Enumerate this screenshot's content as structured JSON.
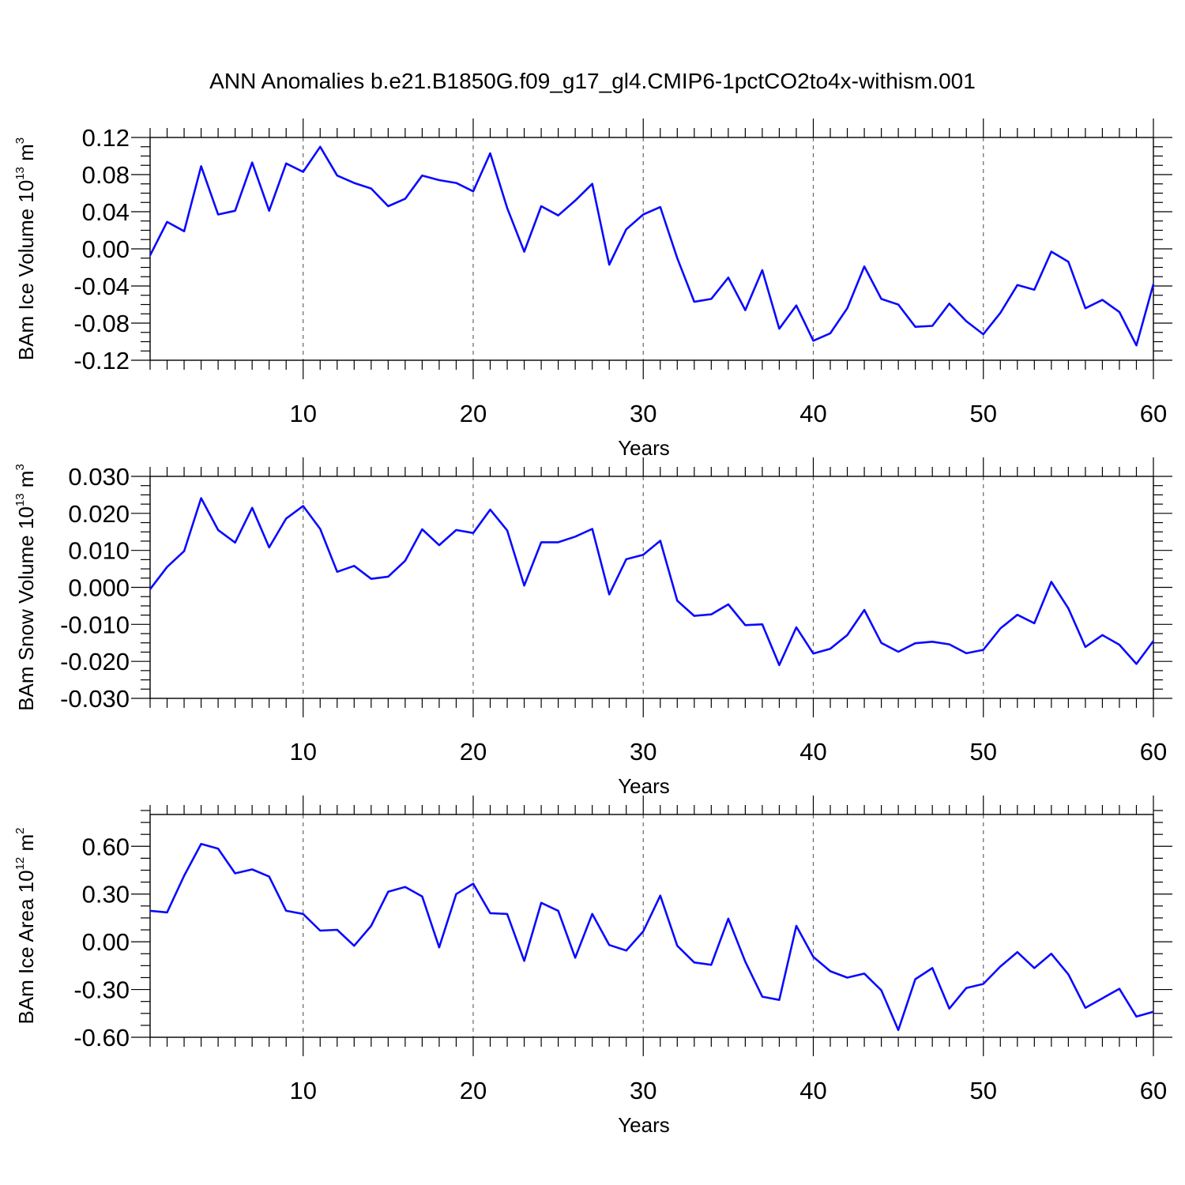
{
  "title": "ANN Anomalies b.e21.B1850G.f09_g17_gl4.CMIP6-1pctCO2to4x-withism.001",
  "chart_data": [
    {
      "type": "line",
      "ylabel": "BAm Ice Volume 10",
      "ylabel_exp": "13",
      "ylabel_unit": " m",
      "ylabel_unit_exp": "3",
      "xlabel": "Years",
      "xlim": [
        1,
        60
      ],
      "ylim": [
        -0.12,
        0.12
      ],
      "xticks": [
        10,
        20,
        30,
        40,
        50,
        60
      ],
      "yticks": [
        -0.12,
        -0.08,
        -0.04,
        0.0,
        0.04,
        0.08,
        0.12
      ],
      "ytick_labels": [
        "-0.12",
        "-0.08",
        "-0.04",
        "0.00",
        "0.04",
        "0.08",
        "0.12"
      ],
      "color": "#0a0aff",
      "x": [
        1,
        2,
        3,
        4,
        5,
        6,
        7,
        8,
        9,
        10,
        11,
        12,
        13,
        14,
        15,
        16,
        17,
        18,
        19,
        20,
        21,
        22,
        23,
        24,
        25,
        26,
        27,
        28,
        29,
        30,
        31,
        32,
        33,
        34,
        35,
        36,
        37,
        38,
        39,
        40,
        41,
        42,
        43,
        44,
        45,
        46,
        47,
        48,
        49,
        50,
        51,
        52,
        53,
        54,
        55,
        56,
        57,
        58,
        59,
        60
      ],
      "values": [
        -0.007,
        0.029,
        0.019,
        0.089,
        0.037,
        0.041,
        0.093,
        0.041,
        0.092,
        0.083,
        0.11,
        0.079,
        0.071,
        0.065,
        0.046,
        0.054,
        0.079,
        0.074,
        0.071,
        0.062,
        0.103,
        0.044,
        -0.003,
        0.046,
        0.036,
        0.052,
        0.07,
        -0.017,
        0.021,
        0.037,
        0.045,
        -0.01,
        -0.057,
        -0.054,
        -0.031,
        -0.066,
        -0.023,
        -0.086,
        -0.061,
        -0.099,
        -0.091,
        -0.064,
        -0.019,
        -0.054,
        -0.06,
        -0.084,
        -0.083,
        -0.059,
        -0.078,
        -0.092,
        -0.069,
        -0.039,
        -0.044,
        -0.003,
        -0.014,
        -0.064,
        -0.055,
        -0.068,
        -0.104,
        -0.038
      ]
    },
    {
      "type": "line",
      "ylabel": "BAm Snow Volume 10",
      "ylabel_exp": "13",
      "ylabel_unit": " m",
      "ylabel_unit_exp": "3",
      "xlabel": "Years",
      "xlim": [
        1,
        60
      ],
      "ylim": [
        -0.03,
        0.03
      ],
      "xticks": [
        10,
        20,
        30,
        40,
        50,
        60
      ],
      "yticks": [
        -0.03,
        -0.02,
        -0.01,
        0.0,
        0.01,
        0.02,
        0.03
      ],
      "ytick_labels": [
        "-0.030",
        "-0.020",
        "-0.010",
        "0.000",
        "0.010",
        "0.020",
        "0.030"
      ],
      "color": "#0a0aff",
      "x": [
        1,
        2,
        3,
        4,
        5,
        6,
        7,
        8,
        9,
        10,
        11,
        12,
        13,
        14,
        15,
        16,
        17,
        18,
        19,
        20,
        21,
        22,
        23,
        24,
        25,
        26,
        27,
        28,
        29,
        30,
        31,
        32,
        33,
        34,
        35,
        36,
        37,
        38,
        39,
        40,
        41,
        42,
        43,
        44,
        45,
        46,
        47,
        48,
        49,
        50,
        51,
        52,
        53,
        54,
        55,
        56,
        57,
        58,
        59,
        60
      ],
      "values": [
        -0.0005,
        0.0055,
        0.0098,
        0.0241,
        0.0155,
        0.0121,
        0.0215,
        0.0108,
        0.0186,
        0.022,
        0.0158,
        0.0042,
        0.0058,
        0.0023,
        0.0029,
        0.0072,
        0.0157,
        0.0114,
        0.0155,
        0.0147,
        0.021,
        0.0154,
        0.0005,
        0.0122,
        0.0122,
        0.0137,
        0.0158,
        -0.0019,
        0.0076,
        0.0088,
        0.0126,
        -0.0036,
        -0.0077,
        -0.0073,
        -0.0046,
        -0.0102,
        -0.01,
        -0.021,
        -0.0108,
        -0.0179,
        -0.0166,
        -0.0129,
        -0.0061,
        -0.015,
        -0.0174,
        -0.0151,
        -0.0147,
        -0.0154,
        -0.0178,
        -0.0169,
        -0.0111,
        -0.0074,
        -0.0097,
        0.0015,
        -0.0057,
        -0.0161,
        -0.0129,
        -0.0155,
        -0.0207,
        -0.0145
      ]
    },
    {
      "type": "line",
      "ylabel": "BAm Ice Area 10",
      "ylabel_exp": "12",
      "ylabel_unit": " m",
      "ylabel_unit_exp": "2",
      "xlabel": "Years",
      "xlim": [
        1,
        60
      ],
      "ylim": [
        -0.6,
        0.8
      ],
      "xticks": [
        10,
        20,
        30,
        40,
        50,
        60
      ],
      "yticks": [
        -0.6,
        -0.3,
        0.0,
        0.3,
        0.6
      ],
      "ytick_labels": [
        "-0.60",
        "-0.30",
        "0.00",
        "0.30",
        "0.60"
      ],
      "color": "#0a0aff",
      "x": [
        1,
        2,
        3,
        4,
        5,
        6,
        7,
        8,
        9,
        10,
        11,
        12,
        13,
        14,
        15,
        16,
        17,
        18,
        19,
        20,
        21,
        22,
        23,
        24,
        25,
        26,
        27,
        28,
        29,
        30,
        31,
        32,
        33,
        34,
        35,
        36,
        37,
        38,
        39,
        40,
        41,
        42,
        43,
        44,
        45,
        46,
        47,
        48,
        49,
        50,
        51,
        52,
        53,
        54,
        55,
        56,
        57,
        58,
        59,
        60
      ],
      "values": [
        0.195,
        0.185,
        0.415,
        0.615,
        0.585,
        0.43,
        0.455,
        0.41,
        0.195,
        0.175,
        0.07,
        0.075,
        -0.025,
        0.1,
        0.315,
        0.345,
        0.285,
        -0.035,
        0.3,
        0.365,
        0.18,
        0.175,
        -0.12,
        0.245,
        0.195,
        -0.1,
        0.175,
        -0.02,
        -0.055,
        0.065,
        0.29,
        -0.025,
        -0.13,
        -0.145,
        0.145,
        -0.125,
        -0.345,
        -0.365,
        0.1,
        -0.095,
        -0.185,
        -0.225,
        -0.2,
        -0.305,
        -0.555,
        -0.235,
        -0.165,
        -0.42,
        -0.29,
        -0.265,
        -0.155,
        -0.065,
        -0.165,
        -0.075,
        -0.205,
        -0.415,
        -0.355,
        -0.295,
        -0.47,
        -0.44
      ]
    }
  ]
}
